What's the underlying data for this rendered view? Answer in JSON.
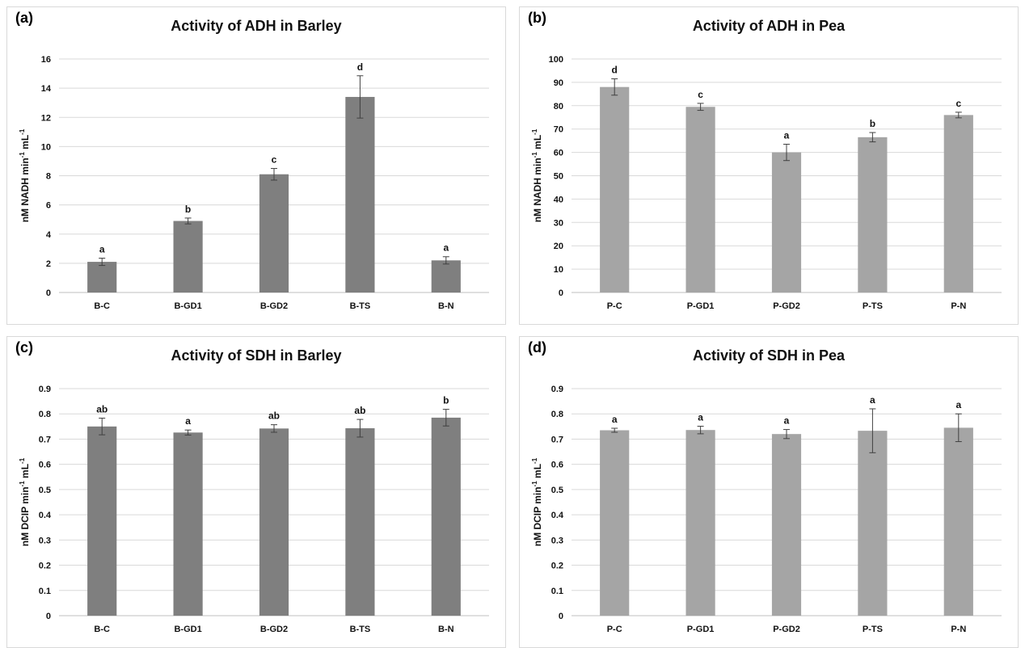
{
  "chart_data": [
    {
      "type": "bar",
      "panel": "(a)",
      "title": "Activity of ADH in Barley",
      "ylabel_main": "nM NADH min",
      "ylabel_mid": " mL",
      "ylabel_sup": "-1",
      "categories": [
        "B-C",
        "B-GD1",
        "B-GD2",
        "B-TS",
        "B-N"
      ],
      "values": [
        2.1,
        4.9,
        8.1,
        13.4,
        2.2
      ],
      "errors": [
        0.25,
        0.2,
        0.4,
        1.45,
        0.25
      ],
      "labels": [
        "a",
        "b",
        "c",
        "d",
        "a"
      ],
      "ylim": [
        0,
        16
      ],
      "yticks": [
        "0",
        "2",
        "4",
        "6",
        "8",
        "10",
        "12",
        "14",
        "16"
      ],
      "color": "#7f7f7f",
      "grid": true
    },
    {
      "type": "bar",
      "panel": "(b)",
      "title": "Activity of ADH in Pea",
      "ylabel_main": "nM NADH min",
      "ylabel_mid": " mL",
      "ylabel_sup": "-1",
      "categories": [
        "P-C",
        "P-GD1",
        "P-GD2",
        "P-TS",
        "P-N"
      ],
      "values": [
        88,
        79.5,
        60,
        66.5,
        76
      ],
      "errors": [
        3.5,
        1.5,
        3.5,
        2,
        1.2
      ],
      "labels": [
        "d",
        "c",
        "a",
        "b",
        "c"
      ],
      "ylim": [
        0,
        100
      ],
      "yticks": [
        "0",
        "10",
        "20",
        "30",
        "40",
        "50",
        "60",
        "70",
        "80",
        "90",
        "100"
      ],
      "color": "#a5a5a5",
      "grid": true
    },
    {
      "type": "bar",
      "panel": "(c)",
      "title": "Activity of SDH in Barley",
      "ylabel_main": "nM DCIP min",
      "ylabel_mid": " mL",
      "ylabel_sup": "-1",
      "categories": [
        "B-C",
        "B-GD1",
        "B-GD2",
        "B-TS",
        "B-N"
      ],
      "values": [
        0.75,
        0.726,
        0.742,
        0.743,
        0.785
      ],
      "errors": [
        0.033,
        0.01,
        0.015,
        0.035,
        0.033
      ],
      "labels": [
        "ab",
        "a",
        "ab",
        "ab",
        "b"
      ],
      "ylim": [
        0,
        0.9
      ],
      "yticks": [
        "0",
        "0.1",
        "0.2",
        "0.3",
        "0.4",
        "0.5",
        "0.6",
        "0.7",
        "0.8",
        "0.9"
      ],
      "color": "#7f7f7f",
      "grid": true
    },
    {
      "type": "bar",
      "panel": "(d)",
      "title": "Activity of SDH in Pea",
      "ylabel_main": "nM DCIP min",
      "ylabel_mid": " mL",
      "ylabel_sup": "-1",
      "categories": [
        "P-C",
        "P-GD1",
        "P-GD2",
        "P-TS",
        "P-N"
      ],
      "values": [
        0.735,
        0.736,
        0.72,
        0.733,
        0.745
      ],
      "errors": [
        0.008,
        0.015,
        0.018,
        0.087,
        0.055
      ],
      "labels": [
        "a",
        "a",
        "a",
        "a",
        "a"
      ],
      "ylim": [
        0,
        0.9
      ],
      "yticks": [
        "0",
        "0.1",
        "0.2",
        "0.3",
        "0.4",
        "0.5",
        "0.6",
        "0.7",
        "0.8",
        "0.9"
      ],
      "color": "#a5a5a5",
      "grid": true
    }
  ]
}
